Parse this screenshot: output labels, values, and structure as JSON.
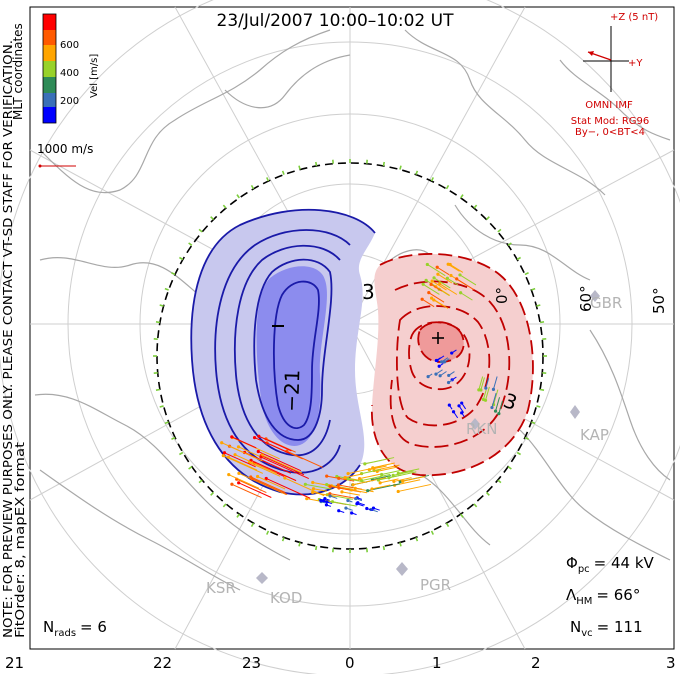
{
  "title": "23/Jul/2007  10:00–10:02  UT",
  "colorbar": {
    "label": "Vel [m/s]",
    "ticks": [
      "600",
      "400",
      "200"
    ],
    "colors": [
      "#ff0000",
      "#ff5a00",
      "#ffa500",
      "#98d22a",
      "#2e8b57",
      "#3a70b8",
      "#0000ff"
    ]
  },
  "left_note_1": "MLT coordinates",
  "left_note_2": "NOTE: FOR PREVIEW PURPOSES ONLY. PLEASE CONTACT VT-SD STAFF FOR VERIFICATION.",
  "left_note_3": "FitOrder: 8,  mapEX format",
  "scale_label": "1000 m/s",
  "imf": {
    "z_label": "+Z (5 nT)",
    "y_label": "+Y",
    "omni": "OMNI IMF",
    "model": "Stat Mod: RG96",
    "cond": "By−, 0<BT<4"
  },
  "lat_labels": [
    "60°",
    "50°"
  ],
  "stations": [
    "GBR",
    "RKN",
    "KAP",
    "KSR",
    "KOD",
    "PGR"
  ],
  "contour_labels": {
    "neg": "−21",
    "pos": "3"
  },
  "stats": {
    "phi": {
      "sym": "Φ",
      "sub": "pc",
      "val": "= 44 kV"
    },
    "lam": {
      "sym": "Λ",
      "sub": "HM",
      "val": "= 66°"
    },
    "nvc": {
      "sym": "N",
      "sub": "vc",
      "val": "= 111"
    },
    "nrads": {
      "sym": "N",
      "sub": "rads",
      "val": "= 6"
    }
  },
  "mlt_ticks": [
    "21",
    "22",
    "23",
    "0",
    "1",
    "2",
    "3"
  ],
  "colors": {
    "neg_fill": "#c8c8ee",
    "neg_core": "#8c8cee",
    "pos_fill": "#f5cfcf",
    "pos_core": "#ef9a9a",
    "neg_line": "#1a1aa8",
    "pos_line": "#c00000"
  }
}
